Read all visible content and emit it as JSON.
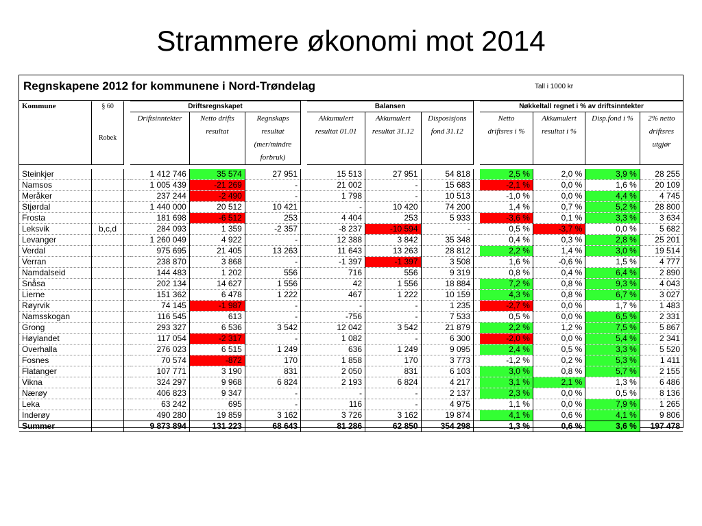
{
  "slide_title": "Strammere økonomi mot 2014",
  "table_title": "Regnskapene 2012  for kommunene i Nord-Trøndelag",
  "unit_note": "Tall i 1000 kr",
  "headers": {
    "kommune": "Kommune",
    "p60": "§ 60",
    "robek": "Robek",
    "group_drift": "Driftsregnskapet",
    "group_balanse": "Balansen",
    "group_nokkel": "Nøkkeltall regnet i % av driftsinntekter",
    "driftsinntekter": "Driftsinntekter",
    "netto_1": "Netto drifts",
    "netto_2": "resultat",
    "regnskap_1": "Regnskaps",
    "regnskap_2": "resultat",
    "regnskap_3": "(mer/mindre",
    "regnskap_4": "forbruk)",
    "akk0101_1": "Akkumulert",
    "akk0101_2": "resultat 01.01",
    "akk3112_1": "Akkumulert",
    "akk3112_2": "resultat 31.12",
    "disp_1": "Disposisjons",
    "disp_2": "fond 31.12",
    "nettop_1": "Netto",
    "nettop_2": "driftsres i %",
    "akkp_1": "Akkumulert",
    "akkp_2": "resultat i %",
    "dispp_1": "Disp.fond i %",
    "two_1": "2% netto",
    "two_2": "driftsres",
    "two_3": "utgjør"
  },
  "colors": {
    "red": "#ff0000",
    "green": "#33ff33"
  },
  "rows": [
    {
      "name": "Steinkjer",
      "robek": "",
      "di": "1 412 746",
      "nd": "35 574",
      "rr": "27 951",
      "a01": "15 513",
      "a31": "27 951",
      "df": "54 818",
      "ndp": "2,5 %",
      "akp": "2,0 %",
      "dfp": "3,9 %",
      "two": "28 255",
      "ndc": "green",
      "rrc": "",
      "a31c": "",
      "ndpc": "green",
      "akpc": "",
      "dfpc": "green"
    },
    {
      "name": "Namsos",
      "robek": "",
      "di": "1 005 439",
      "nd": "-21 269",
      "rr": "-",
      "a01": "21 002",
      "a31": "-",
      "df": "15 683",
      "ndp": "-2,1 %",
      "akp": "0,0 %",
      "dfp": "1,6 %",
      "two": "20 109",
      "ndc": "red",
      "ndpc": "red",
      "akpc": "",
      "dfpc": ""
    },
    {
      "name": "Meråker",
      "robek": "",
      "di": "237 244",
      "nd": "-2 490",
      "rr": "-",
      "a01": "1 798",
      "a31": "-",
      "df": "10 513",
      "ndp": "-1,0 %",
      "akp": "0,0 %",
      "dfp": "4,4 %",
      "two": "4 745",
      "ndc": "red",
      "ndpc": "",
      "akpc": "",
      "dfpc": "green"
    },
    {
      "name": "Stjørdal",
      "robek": "",
      "di": "1 440 000",
      "nd": "20 512",
      "rr": "10 421",
      "a01": "-",
      "a31": "10 420",
      "df": "74 200",
      "ndp": "1,4 %",
      "akp": "0,7 %",
      "dfp": "5,2 %",
      "two": "28 800",
      "ndc": "",
      "ndpc": "",
      "akpc": "",
      "dfpc": "green"
    },
    {
      "name": "Frosta",
      "robek": "",
      "di": "181 698",
      "nd": "-6 512",
      "rr": "253",
      "a01": "4 404",
      "a31": "253",
      "df": "5 933",
      "ndp": "-3,6 %",
      "akp": "0,1 %",
      "dfp": "3,3 %",
      "two": "3 634",
      "ndc": "red",
      "ndpc": "red",
      "akpc": "",
      "dfpc": "green"
    },
    {
      "name": "Leksvik",
      "robek": "b,c,d",
      "di": "284 093",
      "nd": "1 359",
      "rr": "-2 357",
      "a01": "-8 237",
      "a31": "-10 594",
      "df": "-",
      "ndp": "0,5 %",
      "akp": "-3,7 %",
      "dfp": "0,0 %",
      "two": "5 682",
      "ndc": "",
      "a31c": "red",
      "ndpc": "",
      "akpc": "red",
      "dfpc": ""
    },
    {
      "name": "Levanger",
      "robek": "",
      "di": "1 260 049",
      "nd": "4 922",
      "rr": "-",
      "a01": "12 388",
      "a31": "3 842",
      "df": "35 348",
      "ndp": "0,4 %",
      "akp": "0,3 %",
      "dfp": "2,8 %",
      "two": "25 201",
      "ndc": "",
      "ndpc": "",
      "akpc": "",
      "dfpc": "green"
    },
    {
      "name": "Verdal",
      "robek": "",
      "di": "975 695",
      "nd": "21 405",
      "rr": "13 263",
      "a01": "11 643",
      "a31": "13 263",
      "df": "28 812",
      "ndp": "2,2 %",
      "akp": "1,4 %",
      "dfp": "3,0 %",
      "two": "19 514",
      "ndc": "",
      "ndpc": "green",
      "akpc": "",
      "dfpc": "green"
    },
    {
      "name": "Verran",
      "robek": "",
      "di": "238 870",
      "nd": "3 868",
      "rr": "-",
      "a01": "-1 397",
      "a31": "-1 397",
      "df": "3 508",
      "ndp": "1,6 %",
      "akp": "-0,6 %",
      "dfp": "1,5 %",
      "two": "4 777",
      "ndc": "",
      "a31c": "red",
      "ndpc": "",
      "akpc": "",
      "dfpc": ""
    },
    {
      "name": "Namdalseid",
      "robek": "",
      "di": "144 483",
      "nd": "1 202",
      "rr": "556",
      "a01": "716",
      "a31": "556",
      "df": "9 319",
      "ndp": "0,8 %",
      "akp": "0,4 %",
      "dfp": "6,4 %",
      "two": "2 890",
      "ndc": "",
      "ndpc": "",
      "akpc": "",
      "dfpc": "green"
    },
    {
      "name": "Snåsa",
      "robek": "",
      "di": "202 134",
      "nd": "14 627",
      "rr": "1 556",
      "a01": "42",
      "a31": "1 556",
      "df": "18 884",
      "ndp": "7,2 %",
      "akp": "0,8 %",
      "dfp": "9,3 %",
      "two": "4 043",
      "ndc": "",
      "ndpc": "green",
      "akpc": "",
      "dfpc": "green"
    },
    {
      "name": "Lierne",
      "robek": "",
      "di": "151 362",
      "nd": "6 478",
      "rr": "1 222",
      "a01": "467",
      "a31": "1 222",
      "df": "10 159",
      "ndp": "4,3 %",
      "akp": "0,8 %",
      "dfp": "6,7 %",
      "two": "3 027",
      "ndc": "",
      "ndpc": "green",
      "akpc": "",
      "dfpc": "green"
    },
    {
      "name": "Røyrvik",
      "robek": "",
      "di": "74 145",
      "nd": "-1 987",
      "rr": "-",
      "a01": "-",
      "a31": "-",
      "df": "1 235",
      "ndp": "-2,7 %",
      "akp": "0,0 %",
      "dfp": "1,7 %",
      "two": "1 483",
      "ndc": "red",
      "ndpc": "red",
      "akpc": "",
      "dfpc": ""
    },
    {
      "name": "Namsskogan",
      "robek": "",
      "di": "116 545",
      "nd": "613",
      "rr": "-",
      "a01": "-756",
      "a31": "-",
      "df": "7 533",
      "ndp": "0,5 %",
      "akp": "0,0 %",
      "dfp": "6,5 %",
      "two": "2 331",
      "ndc": "",
      "ndpc": "",
      "akpc": "",
      "dfpc": "green"
    },
    {
      "name": "Grong",
      "robek": "",
      "di": "293 327",
      "nd": "6 536",
      "rr": "3 542",
      "a01": "12 042",
      "a31": "3 542",
      "df": "21 879",
      "ndp": "2,2 %",
      "akp": "1,2 %",
      "dfp": "7,5 %",
      "two": "5 867",
      "ndc": "",
      "ndpc": "green",
      "akpc": "",
      "dfpc": "green"
    },
    {
      "name": "Høylandet",
      "robek": "",
      "di": "117 054",
      "nd": "-2 317",
      "rr": "-",
      "a01": "1 082",
      "a31": "-",
      "df": "6 300",
      "ndp": "-2,0 %",
      "akp": "0,0 %",
      "dfp": "5,4 %",
      "two": "2 341",
      "ndc": "red",
      "ndpc": "red",
      "akpc": "",
      "dfpc": "green"
    },
    {
      "name": "Overhalla",
      "robek": "",
      "di": "276 023",
      "nd": "6 515",
      "rr": "1 249",
      "a01": "636",
      "a31": "1 249",
      "df": "9 095",
      "ndp": "2,4 %",
      "akp": "0,5 %",
      "dfp": "3,3 %",
      "two": "5 520",
      "ndc": "",
      "ndpc": "green",
      "akpc": "",
      "dfpc": "green"
    },
    {
      "name": "Fosnes",
      "robek": "",
      "di": "70 574",
      "nd": "-872",
      "rr": "170",
      "a01": "1 858",
      "a31": "170",
      "df": "3 773",
      "ndp": "-1,2 %",
      "akp": "0,2 %",
      "dfp": "5,3 %",
      "two": "1 411",
      "ndc": "red",
      "ndpc": "",
      "akpc": "",
      "dfpc": "green"
    },
    {
      "name": "Flatanger",
      "robek": "",
      "di": "107 771",
      "nd": "3 190",
      "rr": "831",
      "a01": "2 050",
      "a31": "831",
      "df": "6 103",
      "ndp": "3,0 %",
      "akp": "0,8 %",
      "dfp": "5,7 %",
      "two": "2 155",
      "ndc": "",
      "ndpc": "green",
      "akpc": "",
      "dfpc": "green"
    },
    {
      "name": "Vikna",
      "robek": "",
      "di": "324 297",
      "nd": "9 968",
      "rr": "6 824",
      "a01": "2 193",
      "a31": "6 824",
      "df": "4 217",
      "ndp": "3,1 %",
      "akp": "2,1 %",
      "dfp": "1,3 %",
      "two": "6 486",
      "ndc": "",
      "ndpc": "green",
      "akpc": "green",
      "dfpc": ""
    },
    {
      "name": "Nærøy",
      "robek": "",
      "di": "406 823",
      "nd": "9 347",
      "rr": "-",
      "a01": "-",
      "a31": "-",
      "df": "2 137",
      "ndp": "2,3 %",
      "akp": "0,0 %",
      "dfp": "0,5 %",
      "two": "8 136",
      "ndc": "",
      "ndpc": "green",
      "akpc": "",
      "dfpc": ""
    },
    {
      "name": "Leka",
      "robek": "",
      "di": "63 242",
      "nd": "695",
      "rr": "-",
      "a01": "116",
      "a31": "-",
      "df": "4 975",
      "ndp": "1,1 %",
      "akp": "0,0 %",
      "dfp": "7,9 %",
      "two": "1 265",
      "ndc": "",
      "ndpc": "",
      "akpc": "",
      "dfpc": "green"
    },
    {
      "name": "Inderøy",
      "robek": "",
      "di": "490 280",
      "nd": "19 859",
      "rr": "3 162",
      "a01": "3 726",
      "a31": "3 162",
      "df": "19 874",
      "ndp": "4,1 %",
      "akp": "0,6 %",
      "dfp": "4,1 %",
      "two": "9 806",
      "ndc": "",
      "ndpc": "green",
      "akpc": "",
      "dfpc": "green"
    }
  ],
  "sum": {
    "name": "Summer",
    "di": "9 873 894",
    "nd": "131 223",
    "rr": "68 643",
    "a01": "81 286",
    "a31": "62 850",
    "df": "354 298",
    "ndp": "1,3 %",
    "akp": "0,6 %",
    "dfp": "3,6 %",
    "two": "197 478",
    "dfpc": "green"
  }
}
